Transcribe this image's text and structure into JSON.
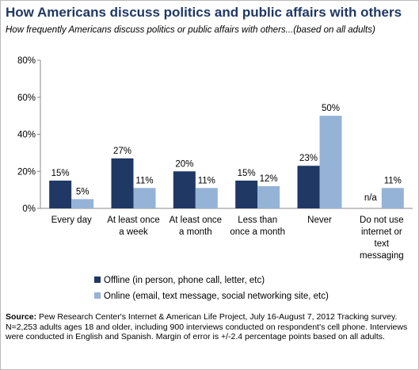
{
  "chart_data": {
    "type": "bar",
    "title": "How Americans discuss politics and public affairs with others",
    "subtitle": "How frequently Americans discuss politics or public affairs with others...(based on all adults)",
    "categories": [
      "Every day",
      "At least once\na week",
      "At least once\na month",
      "Less than\nonce a month",
      "Never",
      "Do not use\ninternet or\ntext\nmessaging"
    ],
    "series": [
      {
        "name": "Offline (in person, phone call, letter, etc)",
        "color": "#1f3864",
        "values": [
          15,
          27,
          20,
          15,
          23,
          null
        ],
        "value_labels": [
          "15%",
          "27%",
          "20%",
          "15%",
          "23%",
          "n/a"
        ]
      },
      {
        "name": "Online (email, text message, social networking site, etc)",
        "color": "#95b3d7",
        "values": [
          5,
          11,
          11,
          12,
          50,
          11
        ],
        "value_labels": [
          "5%",
          "11%",
          "11%",
          "12%",
          "50%",
          "11%"
        ]
      }
    ],
    "ylim": [
      0,
      80
    ],
    "yticks": [
      {
        "value": 0,
        "label": "0%"
      },
      {
        "value": 20,
        "label": "20%"
      },
      {
        "value": 40,
        "label": "40%"
      },
      {
        "value": 60,
        "label": "60%"
      },
      {
        "value": 80,
        "label": "80%"
      }
    ],
    "grid": false,
    "source_label": "Source:",
    "source_text": "Pew Research Center's Internet & American Life Project, July 16-August 7, 2012 Tracking survey. N=2,253 adults ages 18 and older, including 900 interviews conducted on respondent's cell phone. Interviews were conducted in English and Spanish. Margin of error is +/-2.4 percentage points based on all adults."
  }
}
